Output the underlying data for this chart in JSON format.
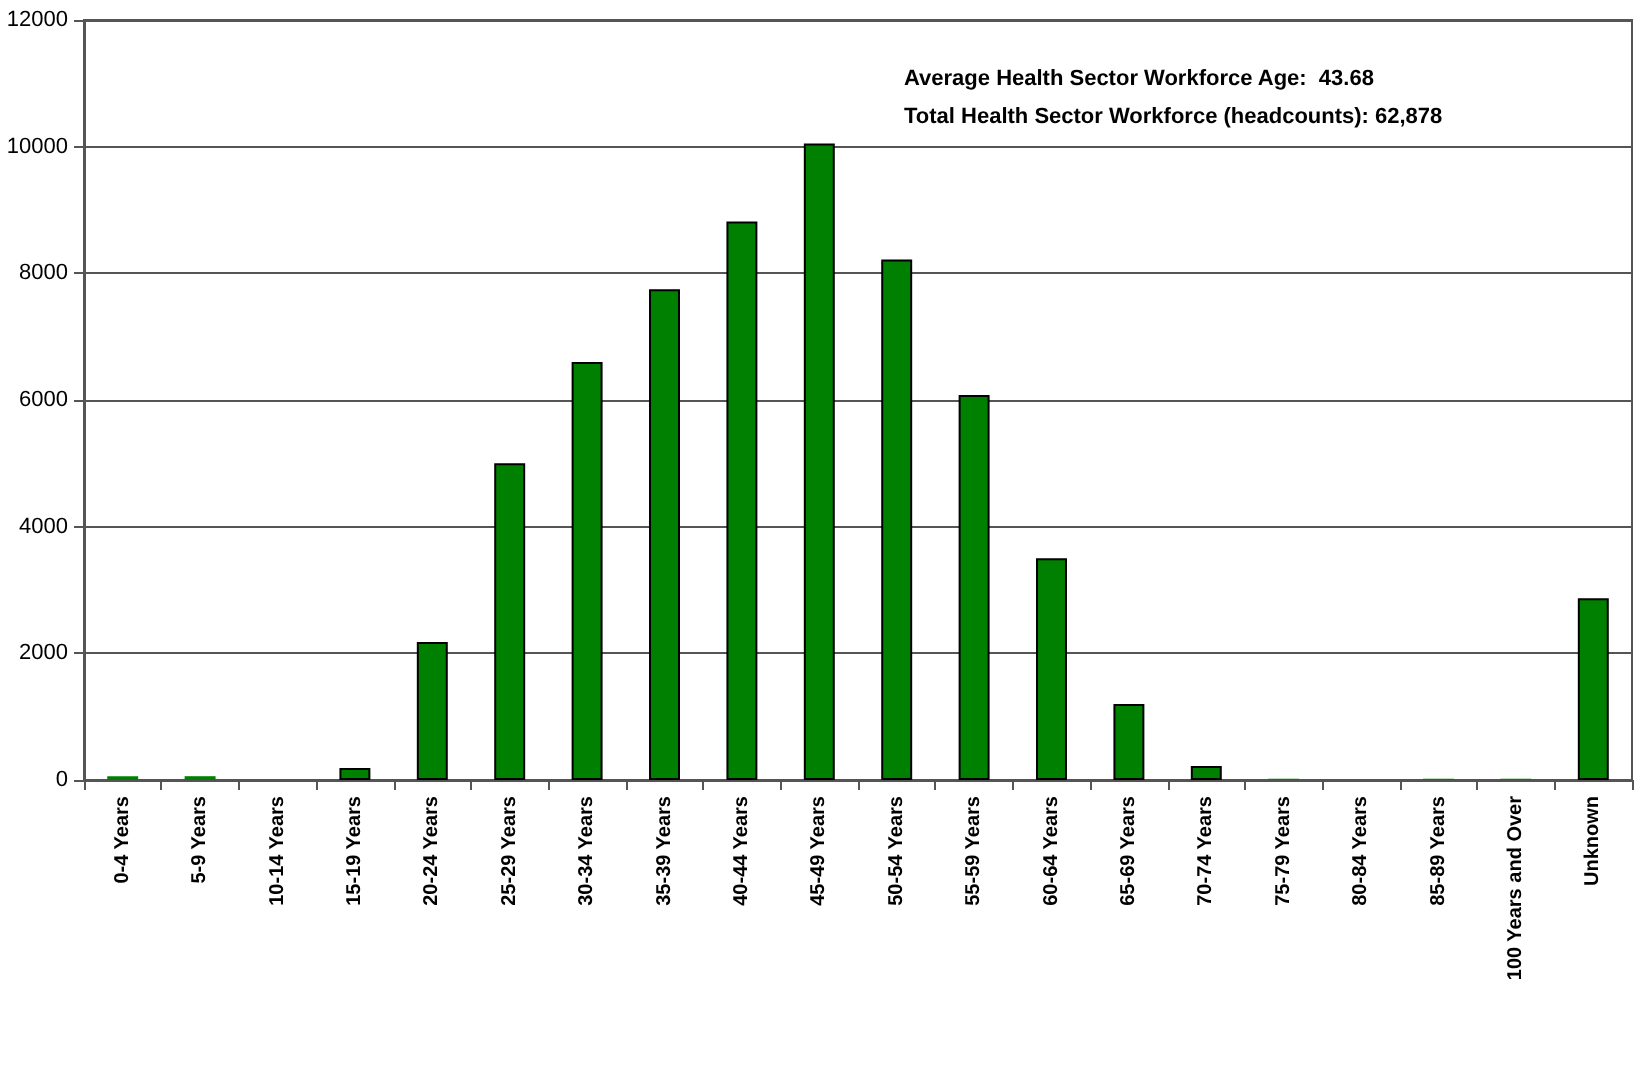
{
  "chart_data": {
    "type": "bar",
    "categories": [
      "0-4 Years",
      "5-9 Years",
      "10-14 Years",
      "15-19 Years",
      "20-24 Years",
      "25-29 Years",
      "30-34 Years",
      "35-39 Years",
      "40-44 Years",
      "45-49 Years",
      "50-54 Years",
      "55-59 Years",
      "60-64 Years",
      "65-69 Years",
      "70-74 Years",
      "75-79 Years",
      "80-84 Years",
      "85-89 Years",
      "100 Years and Over",
      "Unknown"
    ],
    "values": [
      60,
      60,
      0,
      190,
      2180,
      5000,
      6600,
      7750,
      8820,
      10050,
      8220,
      6080,
      3500,
      1200,
      220,
      20,
      0,
      20,
      20,
      2870
    ],
    "color": "#008000",
    "ylim": [
      0,
      12000
    ],
    "yticks": [
      0,
      2000,
      4000,
      6000,
      8000,
      10000,
      12000
    ],
    "grid": "y",
    "annotations": [
      "Average Health Sector Workforce Age:  43.68",
      "Total Health Sector Workforce (headcounts): 62,878"
    ]
  }
}
